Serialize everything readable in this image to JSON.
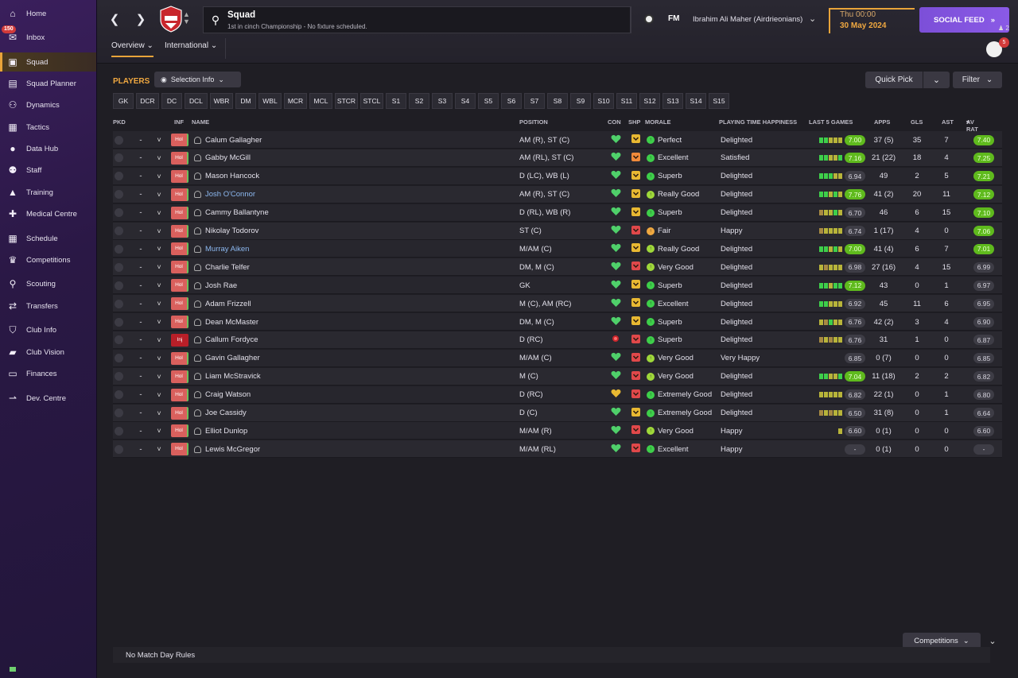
{
  "sidebar": {
    "items": [
      {
        "label": "Home",
        "icon": "home-icon",
        "glyph": "⌂"
      },
      {
        "label": "Inbox",
        "icon": "inbox-icon",
        "glyph": "✉",
        "badge": "150"
      },
      {
        "label": "Squad",
        "icon": "shirt-icon",
        "glyph": "▣",
        "active": true
      },
      {
        "label": "Squad Planner",
        "icon": "clipboard-icon",
        "glyph": "▤"
      },
      {
        "label": "Dynamics",
        "icon": "dynamics-icon",
        "glyph": "⚇"
      },
      {
        "label": "Tactics",
        "icon": "tactics-icon",
        "glyph": "▦"
      },
      {
        "label": "Data Hub",
        "icon": "data-hub-icon",
        "glyph": "●"
      },
      {
        "label": "Staff",
        "icon": "staff-icon",
        "glyph": "⚉"
      },
      {
        "label": "Training",
        "icon": "training-icon",
        "glyph": "▲"
      },
      {
        "label": "Medical Centre",
        "icon": "medical-icon",
        "glyph": "✚"
      },
      {
        "label": "Schedule",
        "icon": "calendar-icon",
        "glyph": "▦"
      },
      {
        "label": "Competitions",
        "icon": "trophy-icon",
        "glyph": "♛"
      },
      {
        "label": "Scouting",
        "icon": "magnifier-icon",
        "glyph": "⚲"
      },
      {
        "label": "Transfers",
        "icon": "transfers-icon",
        "glyph": "⇄"
      },
      {
        "label": "Club Info",
        "icon": "shield-icon",
        "glyph": "⛉"
      },
      {
        "label": "Club Vision",
        "icon": "briefcase-icon",
        "glyph": "▰"
      },
      {
        "label": "Finances",
        "icon": "money-icon",
        "glyph": "▭"
      },
      {
        "label": "Dev. Centre",
        "icon": "dev-centre-icon",
        "glyph": "⇀"
      }
    ]
  },
  "header": {
    "title": "Squad",
    "subtitle": "1st in cinch Championship - No fixture scheduled.",
    "fm_logo": "FM",
    "manager": "Ibrahim Ali Maher (Airdrieonians)",
    "day_time": "Thu 00:00",
    "date": "30 May 2024",
    "social_feed": "SOCIAL FEED",
    "people_count": "2",
    "avatar_badge": "5",
    "tabs": [
      {
        "label": "Overview",
        "active": true
      },
      {
        "label": "International",
        "active": false
      }
    ]
  },
  "panel": {
    "title": "PLAYERS",
    "selection_info": "Selection Info",
    "quick_pick": "Quick Pick",
    "filter": "Filter",
    "competitions": "Competitions",
    "no_match": "No Match Day Rules",
    "positions": [
      "GK",
      "DCR",
      "DC",
      "DCL",
      "WBR",
      "DM",
      "WBL",
      "MCR",
      "MCL",
      "STCR",
      "STCL",
      "S1",
      "S2",
      "S3",
      "S4",
      "S5",
      "S6",
      "S7",
      "S8",
      "S9",
      "S10",
      "S11",
      "S12",
      "S13",
      "S14",
      "S15"
    ]
  },
  "columns": {
    "pkd": "PKD",
    "inf": "INF",
    "name": "NAME",
    "position": "POSITION",
    "con": "CON",
    "shp": "SHP",
    "morale": "MORALE",
    "pth": "PLAYING TIME HAPPINESS",
    "last5": "LAST 5 GAMES",
    "apps": "APPS",
    "gls": "GLS",
    "ast": "AST",
    "avrat": "AV RAT"
  },
  "colors": {
    "accent": "#e8a43a",
    "rating_green": "#5fba1d",
    "form_green": "#3ecf4a",
    "form_yellow": "#b8b43a",
    "form_brown": "#a88a42",
    "heart": "#4fd06a",
    "shp_yellow": "#e8b832",
    "shp_red": "#e0484a"
  },
  "players": [
    {
      "pkd": "-",
      "inf": "Hol",
      "name": "Calum Gallagher",
      "link": false,
      "position": "AM (R), ST (C)",
      "con": "heart",
      "shp": "yellow",
      "morale": "Perfect",
      "morale_color": "#3ecf4a",
      "pth": "Delighted",
      "form": [
        "g",
        "g",
        "y",
        "y",
        "y"
      ],
      "last5": "7.00",
      "last5_good": true,
      "apps": "37 (5)",
      "gls": "35",
      "ast": "7",
      "avrat": "7.40",
      "avrat_good": true
    },
    {
      "pkd": "-",
      "inf": "Hol",
      "name": "Gabby McGill",
      "link": false,
      "position": "AM (RL), ST (C)",
      "con": "heart",
      "shp": "orange",
      "morale": "Excellent",
      "morale_color": "#3ecf4a",
      "pth": "Satisfied",
      "form": [
        "g",
        "g",
        "y",
        "y",
        "g"
      ],
      "last5": "7.16",
      "last5_good": true,
      "apps": "21 (22)",
      "gls": "18",
      "ast": "4",
      "avrat": "7.25",
      "avrat_good": true
    },
    {
      "pkd": "-",
      "inf": "Hol",
      "name": "Mason Hancock",
      "link": false,
      "position": "D (LC), WB (L)",
      "con": "heart",
      "shp": "yellow",
      "morale": "Superb",
      "morale_color": "#3ecf4a",
      "pth": "Delighted",
      "form": [
        "g",
        "g",
        "g",
        "y",
        "y"
      ],
      "last5": "6.94",
      "last5_good": false,
      "apps": "49",
      "gls": "2",
      "ast": "5",
      "avrat": "7.21",
      "avrat_good": true
    },
    {
      "pkd": "-",
      "inf": "Hol",
      "name": "Josh O'Connor",
      "link": true,
      "position": "AM (R), ST (C)",
      "con": "heart",
      "shp": "yellow",
      "morale": "Really Good",
      "morale_color": "#9fd83a",
      "pth": "Delighted",
      "form": [
        "g",
        "g",
        "y",
        "g",
        "y"
      ],
      "last5": "7.76",
      "last5_good": true,
      "apps": "41 (2)",
      "gls": "20",
      "ast": "11",
      "avrat": "7.12",
      "avrat_good": true
    },
    {
      "pkd": "-",
      "inf": "Hol",
      "name": "Cammy Ballantyne",
      "link": false,
      "position": "D (RL), WB (R)",
      "con": "heart",
      "shp": "yellow",
      "morale": "Superb",
      "morale_color": "#3ecf4a",
      "pth": "Delighted",
      "form": [
        "b",
        "y",
        "y",
        "g",
        "y"
      ],
      "last5": "6.70",
      "last5_good": false,
      "apps": "46",
      "gls": "6",
      "ast": "15",
      "avrat": "7.10",
      "avrat_good": true
    },
    {
      "pkd": "-",
      "inf": "Hol",
      "name": "Nikolay Todorov",
      "link": false,
      "position": "ST (C)",
      "con": "heart",
      "shp": "red",
      "morale": "Fair",
      "morale_color": "#f0a840",
      "pth": "Happy",
      "form": [
        "b",
        "y",
        "y",
        "y",
        "y"
      ],
      "last5": "6.74",
      "last5_good": false,
      "apps": "1 (17)",
      "gls": "4",
      "ast": "0",
      "avrat": "7.06",
      "avrat_good": true
    },
    {
      "pkd": "-",
      "inf": "Hol",
      "name": "Murray Aiken",
      "link": true,
      "position": "M/AM (C)",
      "con": "heart",
      "shp": "yellow",
      "morale": "Really Good",
      "morale_color": "#9fd83a",
      "pth": "Delighted",
      "form": [
        "g",
        "g",
        "y",
        "g",
        "y"
      ],
      "last5": "7.00",
      "last5_good": true,
      "apps": "41 (4)",
      "gls": "6",
      "ast": "7",
      "avrat": "7.01",
      "avrat_good": true
    },
    {
      "pkd": "-",
      "inf": "Hol",
      "name": "Charlie Telfer",
      "link": false,
      "position": "DM, M (C)",
      "con": "heart",
      "shp": "red",
      "morale": "Very Good",
      "morale_color": "#9fd83a",
      "pth": "Delighted",
      "form": [
        "y",
        "b",
        "y",
        "y",
        "y"
      ],
      "last5": "6.98",
      "last5_good": false,
      "apps": "27 (16)",
      "gls": "4",
      "ast": "15",
      "avrat": "6.99",
      "avrat_good": false
    },
    {
      "pkd": "-",
      "inf": "Hol",
      "name": "Josh Rae",
      "link": false,
      "position": "GK",
      "con": "heart",
      "shp": "yellow",
      "morale": "Superb",
      "morale_color": "#3ecf4a",
      "pth": "Delighted",
      "form": [
        "g",
        "g",
        "y",
        "g",
        "g"
      ],
      "last5": "7.12",
      "last5_good": true,
      "apps": "43",
      "gls": "0",
      "ast": "1",
      "avrat": "6.97",
      "avrat_good": false
    },
    {
      "pkd": "-",
      "inf": "Hol",
      "name": "Adam Frizzell",
      "link": false,
      "position": "M (C), AM (RC)",
      "con": "heart",
      "shp": "yellow",
      "morale": "Excellent",
      "morale_color": "#3ecf4a",
      "pth": "Delighted",
      "form": [
        "g",
        "g",
        "y",
        "y",
        "y"
      ],
      "last5": "6.92",
      "last5_good": false,
      "apps": "45",
      "gls": "11",
      "ast": "6",
      "avrat": "6.95",
      "avrat_good": false
    },
    {
      "pkd": "-",
      "inf": "Hol",
      "name": "Dean McMaster",
      "link": false,
      "position": "DM, M (C)",
      "con": "heart",
      "shp": "yellow",
      "morale": "Superb",
      "morale_color": "#3ecf4a",
      "pth": "Delighted",
      "form": [
        "y",
        "b",
        "g",
        "y",
        "y"
      ],
      "last5": "6.76",
      "last5_good": false,
      "apps": "42 (2)",
      "gls": "3",
      "ast": "4",
      "avrat": "6.90",
      "avrat_good": false
    },
    {
      "pkd": "-",
      "inf": "Inj",
      "name": "Callum Fordyce",
      "link": false,
      "position": "D (RC)",
      "con": "injured",
      "shp": "red",
      "morale": "Superb",
      "morale_color": "#3ecf4a",
      "pth": "Delighted",
      "form": [
        "b",
        "y",
        "b",
        "y",
        "y"
      ],
      "last5": "6.76",
      "last5_good": false,
      "apps": "31",
      "gls": "1",
      "ast": "0",
      "avrat": "6.87",
      "avrat_good": false
    },
    {
      "pkd": "-",
      "inf": "Hol",
      "name": "Gavin Gallagher",
      "link": false,
      "position": "M/AM (C)",
      "con": "heart",
      "shp": "red",
      "morale": "Very Good",
      "morale_color": "#9fd83a",
      "pth": "Very Happy",
      "form": [],
      "last5": "6.85",
      "last5_good": false,
      "apps": "0 (7)",
      "gls": "0",
      "ast": "0",
      "avrat": "6.85",
      "avrat_good": false
    },
    {
      "pkd": "-",
      "inf": "Hol",
      "name": "Liam McStravick",
      "link": false,
      "position": "M (C)",
      "con": "heart",
      "shp": "red",
      "morale": "Very Good",
      "morale_color": "#9fd83a",
      "pth": "Delighted",
      "form": [
        "g",
        "g",
        "y",
        "y",
        "g"
      ],
      "last5": "7.04",
      "last5_good": true,
      "apps": "11 (18)",
      "gls": "2",
      "ast": "2",
      "avrat": "6.82",
      "avrat_good": false
    },
    {
      "pkd": "-",
      "inf": "Hol",
      "name": "Craig Watson",
      "link": false,
      "position": "D (RC)",
      "con": "heart-yellow",
      "shp": "red",
      "morale": "Extremely Good",
      "morale_color": "#3ecf4a",
      "pth": "Delighted",
      "form": [
        "y",
        "y",
        "y",
        "y",
        "y"
      ],
      "last5": "6.82",
      "last5_good": false,
      "apps": "22 (1)",
      "gls": "0",
      "ast": "1",
      "avrat": "6.80",
      "avrat_good": false
    },
    {
      "pkd": "-",
      "inf": "Hol",
      "name": "Joe Cassidy",
      "link": false,
      "position": "D (C)",
      "con": "heart",
      "shp": "yellow",
      "morale": "Extremely Good",
      "morale_color": "#3ecf4a",
      "pth": "Delighted",
      "form": [
        "b",
        "y",
        "b",
        "y",
        "y"
      ],
      "last5": "6.50",
      "last5_good": false,
      "apps": "31 (8)",
      "gls": "0",
      "ast": "1",
      "avrat": "6.64",
      "avrat_good": false
    },
    {
      "pkd": "-",
      "inf": "Hol",
      "name": "Elliot Dunlop",
      "link": false,
      "position": "M/AM (R)",
      "con": "heart",
      "shp": "red",
      "morale": "Very Good",
      "morale_color": "#9fd83a",
      "pth": "Happy",
      "form": [
        "y"
      ],
      "last5": "6.60",
      "last5_good": false,
      "apps": "0 (1)",
      "gls": "0",
      "ast": "0",
      "avrat": "6.60",
      "avrat_good": false
    },
    {
      "pkd": "-",
      "inf": "Hol",
      "name": "Lewis McGregor",
      "link": false,
      "position": "M/AM (RL)",
      "con": "heart",
      "shp": "red",
      "morale": "Excellent",
      "morale_color": "#3ecf4a",
      "pth": "Happy",
      "form": [],
      "last5": "-",
      "last5_good": false,
      "apps": "0 (1)",
      "gls": "0",
      "ast": "0",
      "avrat": "-",
      "avrat_good": false
    }
  ]
}
